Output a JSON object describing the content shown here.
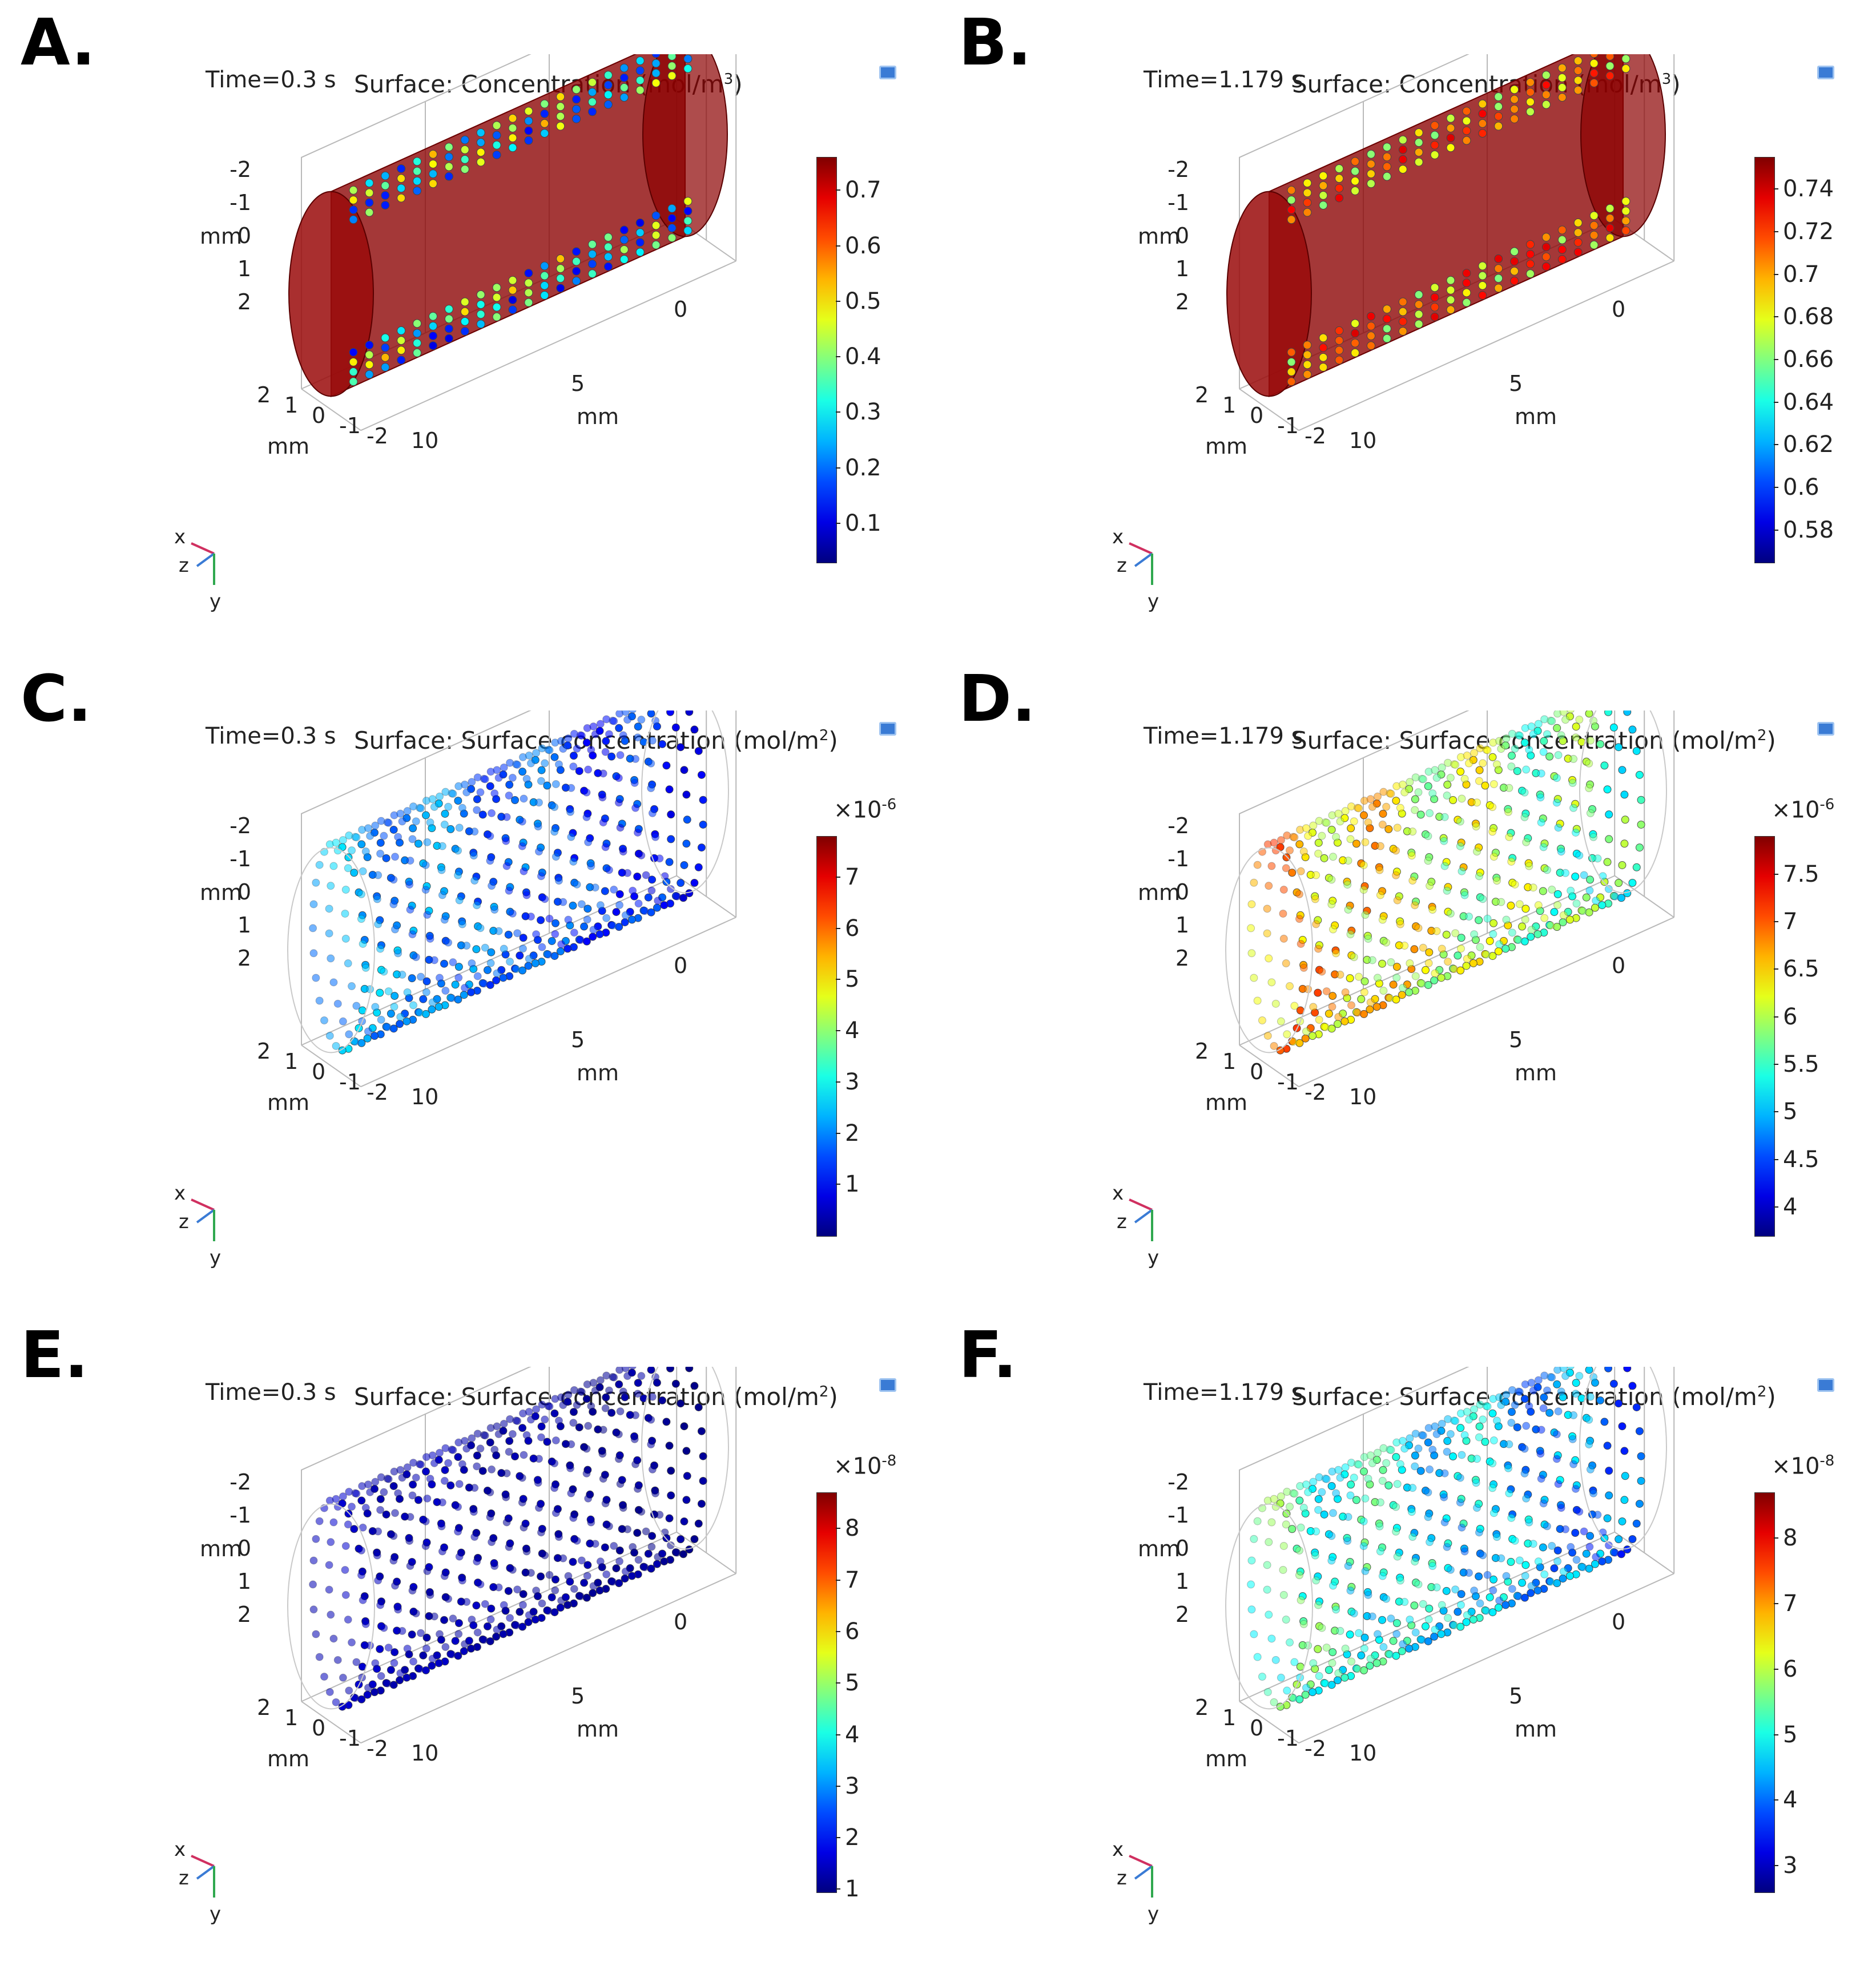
{
  "panels": [
    {
      "letter": "A.",
      "time": "Time=0.3 s",
      "surface": "Surface: Concentration (mol/m",
      "unit_exp": "3",
      "unit_close": ")",
      "mode": "volume",
      "colorbar": {
        "multiplier": "",
        "multiplier_exp": "",
        "ticks": [
          "0.7",
          "0.6",
          "0.5",
          "0.4",
          "0.3",
          "0.2",
          "0.1"
        ],
        "range": [
          0.03,
          0.76
        ]
      },
      "dot_value_range": [
        0.1,
        0.55
      ]
    },
    {
      "letter": "B.",
      "time": "Time=1.179 s",
      "surface": "Surface: Concentration (mol/m",
      "unit_exp": "3",
      "unit_close": ")",
      "mode": "volume",
      "colorbar": {
        "multiplier": "",
        "multiplier_exp": "",
        "ticks": [
          "0.74",
          "0.72",
          "0.7",
          "0.68",
          "0.66",
          "0.64",
          "0.62",
          "0.6",
          "0.58"
        ],
        "range": [
          0.565,
          0.755
        ]
      },
      "dot_value_range": [
        0.66,
        0.74
      ]
    },
    {
      "letter": "C.",
      "time": "Time=0.3 s",
      "surface": "Surface: Surface concentration (mol/m",
      "unit_exp": "2",
      "unit_close": ")",
      "mode": "particles",
      "colorbar": {
        "multiplier": "×10",
        "multiplier_exp": "-6",
        "ticks": [
          "7",
          "6",
          "5",
          "4",
          "3",
          "2",
          "1"
        ],
        "range": [
          0.0,
          7.8
        ]
      },
      "dot_value_range": [
        0.6,
        2.8
      ]
    },
    {
      "letter": "D.",
      "time": "Time=1.179 s",
      "surface": "Surface: Surface concentration (mol/m",
      "unit_exp": "2",
      "unit_close": ")",
      "mode": "particles",
      "colorbar": {
        "multiplier": "×10",
        "multiplier_exp": "-6",
        "ticks": [
          "7.5",
          "7",
          "6.5",
          "6",
          "5.5",
          "5",
          "4.5",
          "4"
        ],
        "range": [
          3.7,
          7.9
        ]
      },
      "dot_value_range": [
        5.0,
        7.2
      ]
    },
    {
      "letter": "E.",
      "time": "Time=0.3 s",
      "surface": "Surface: Surface concentration (mol/m",
      "unit_exp": "2",
      "unit_close": ")",
      "mode": "particles",
      "colorbar": {
        "multiplier": "×10",
        "multiplier_exp": "-8",
        "ticks": [
          "8",
          "7",
          "6",
          "5",
          "4",
          "3",
          "2",
          "1"
        ],
        "range": [
          0.95,
          8.7
        ]
      },
      "dot_value_range": [
        1.0,
        1.6
      ]
    },
    {
      "letter": "F.",
      "time": "Time=1.179 s",
      "surface": "Surface: Surface concentration (mol/m",
      "unit_exp": "2",
      "unit_close": ")",
      "mode": "particles",
      "colorbar": {
        "multiplier": "×10",
        "multiplier_exp": "-8",
        "ticks": [
          "8",
          "7",
          "6",
          "5",
          "4",
          "3"
        ],
        "range": [
          2.6,
          8.7
        ]
      },
      "dot_value_range": [
        3.4,
        6.0
      ]
    }
  ],
  "axes": {
    "vertical_ticks": [
      "-2",
      "-1",
      "0",
      "1",
      "2"
    ],
    "vertical_unit": "mm",
    "depth_ticks": [
      "2",
      "1",
      "0",
      "-1",
      "-2"
    ],
    "depth_unit": "mm",
    "length_ticks": [
      "10",
      "5",
      "0"
    ],
    "length_unit": "mm",
    "triad": {
      "x": "x",
      "y": "y",
      "z": "z"
    }
  },
  "chart_data": [
    {
      "type": "heatmap",
      "title": "Time=0.3 s Surface: Concentration (mol/m3)",
      "colorbar_ticks": [
        0.7,
        0.6,
        0.5,
        0.4,
        0.3,
        0.2,
        0.1
      ],
      "clim": [
        0.03,
        0.76
      ],
      "xlabel": "mm",
      "ylabel": "mm"
    },
    {
      "type": "heatmap",
      "title": "Time=1.179 s Surface: Concentration (mol/m3)",
      "colorbar_ticks": [
        0.74,
        0.72,
        0.7,
        0.68,
        0.66,
        0.64,
        0.62,
        0.6,
        0.58
      ],
      "clim": [
        0.565,
        0.755
      ],
      "xlabel": "mm",
      "ylabel": "mm"
    },
    {
      "type": "scatter",
      "title": "Time=0.3 s Surface: Surface concentration (mol/m2)",
      "scale": "1e-6",
      "colorbar_ticks": [
        7,
        6,
        5,
        4,
        3,
        2,
        1
      ],
      "clim": [
        0.0,
        7.8
      ]
    },
    {
      "type": "scatter",
      "title": "Time=1.179 s Surface: Surface concentration (mol/m2)",
      "scale": "1e-6",
      "colorbar_ticks": [
        7.5,
        7,
        6.5,
        6,
        5.5,
        5,
        4.5,
        4
      ],
      "clim": [
        3.7,
        7.9
      ]
    },
    {
      "type": "scatter",
      "title": "Time=0.3 s Surface: Surface concentration (mol/m2)",
      "scale": "1e-8",
      "colorbar_ticks": [
        8,
        7,
        6,
        5,
        4,
        3,
        2,
        1
      ],
      "clim": [
        0.95,
        8.7
      ]
    },
    {
      "type": "scatter",
      "title": "Time=1.179 s Surface: Surface concentration (mol/m2)",
      "scale": "1e-8",
      "colorbar_ticks": [
        8,
        7,
        6,
        5,
        4,
        3
      ],
      "clim": [
        2.6,
        8.7
      ]
    }
  ]
}
